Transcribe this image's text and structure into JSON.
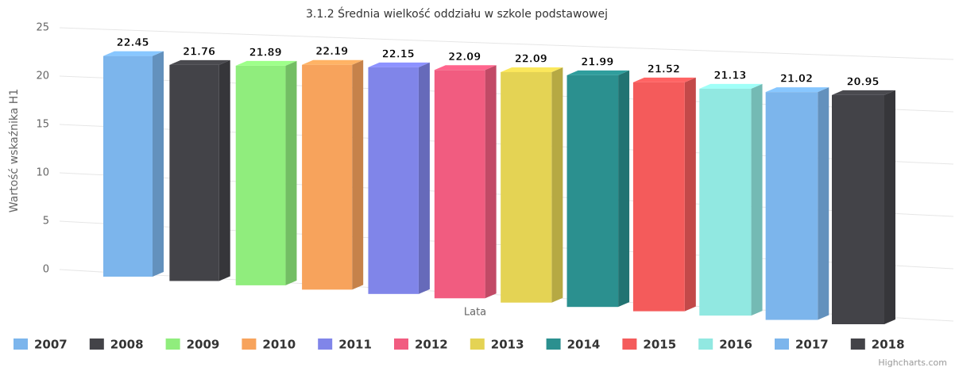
{
  "chart_data": {
    "type": "bar",
    "title": "3.1.2 Średnia wielkość oddziału w szkole podstawowej",
    "y_axis_label": "Wartość wskaźnika H1",
    "x_axis_label": "Lata",
    "credits": "Highcharts.com",
    "ylim": [
      0,
      25
    ],
    "yticks": [
      0,
      5,
      10,
      15,
      20,
      25
    ],
    "grid": true,
    "legend": "bottom",
    "series": [
      {
        "name": "2007",
        "color": "#7cb5ec",
        "values": [
          22.45
        ]
      },
      {
        "name": "2008",
        "color": "#434348",
        "values": [
          21.76
        ]
      },
      {
        "name": "2009",
        "color": "#90ed7d",
        "values": [
          21.89
        ]
      },
      {
        "name": "2010",
        "color": "#f7a35c",
        "values": [
          22.19
        ]
      },
      {
        "name": "2011",
        "color": "#8085e9",
        "values": [
          22.15
        ]
      },
      {
        "name": "2012",
        "color": "#f15c80",
        "values": [
          22.09
        ]
      },
      {
        "name": "2013",
        "color": "#e4d354",
        "values": [
          22.09
        ]
      },
      {
        "name": "2014",
        "color": "#2b908f",
        "values": [
          21.99
        ]
      },
      {
        "name": "2015",
        "color": "#f45b5b",
        "values": [
          21.52
        ]
      },
      {
        "name": "2016",
        "color": "#91e8e1",
        "values": [
          21.13
        ]
      },
      {
        "name": "2017",
        "color": "#7cb5ec",
        "values": [
          21.02
        ]
      },
      {
        "name": "2018",
        "color": "#434348",
        "values": [
          20.95
        ]
      }
    ]
  }
}
